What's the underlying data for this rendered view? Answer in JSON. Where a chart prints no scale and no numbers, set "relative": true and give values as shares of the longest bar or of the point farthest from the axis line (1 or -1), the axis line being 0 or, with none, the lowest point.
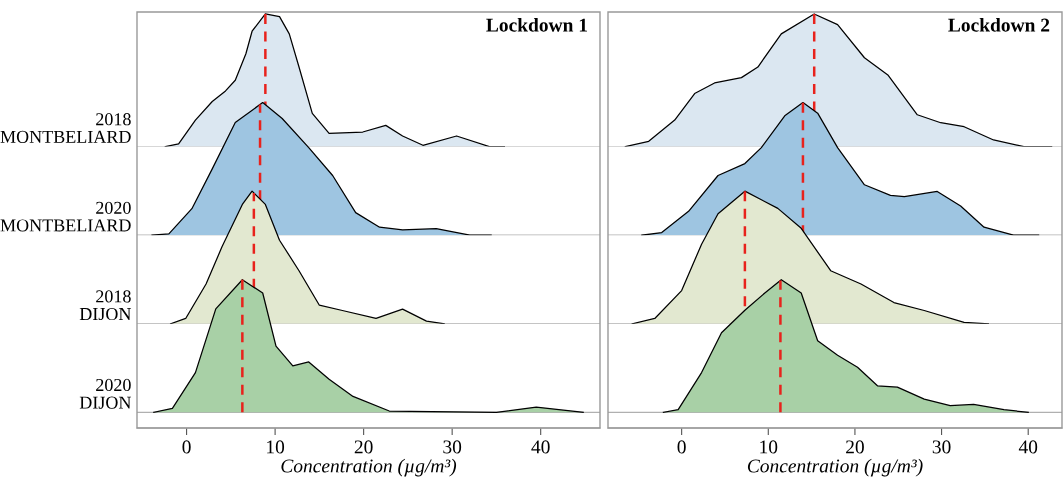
{
  "chart_data": [
    {
      "type": "area",
      "title": "Lockdown 1",
      "relative": true,
      "xlim": [
        -5.6,
        46.7
      ],
      "xticks": [
        0,
        10,
        20,
        30,
        40
      ],
      "tick_labels": false,
      "series": [
        {
          "name": "2018\nMONTBELIARD",
          "color": "#dbe7f1",
          "x": [
            -2.4,
            -0.9,
            1.0,
            2.9,
            4.4,
            5.5,
            6.7,
            7.4,
            8.9,
            10.5,
            11.6,
            12.7,
            14.2,
            16.1,
            19.9,
            22.5,
            24.4,
            26.7,
            30.5,
            34.2,
            35.9
          ],
          "values": [
            0,
            0.02,
            0.2,
            0.34,
            0.42,
            0.5,
            0.7,
            0.87,
            1.0,
            0.98,
            0.85,
            0.6,
            0.25,
            0.1,
            0.11,
            0.16,
            0.08,
            0.01,
            0.08,
            0.0,
            0
          ]
        }
      ],
      "ref_lines": [
        {
          "axis": "x",
          "value": 8.9,
          "color": "#e8221c",
          "line_style": "dashed"
        }
      ]
    },
    {
      "type": "area",
      "relative": true,
      "xlim": [
        -5.6,
        46.7
      ],
      "xticks": [
        0,
        10,
        20,
        30,
        40
      ],
      "tick_labels": false,
      "series": [
        {
          "name": "2020\nMONTBELIARD",
          "color": "#9ec5e1",
          "x": [
            -3.9,
            -2.0,
            0.6,
            2.9,
            5.5,
            8.6,
            10.8,
            13.8,
            16.5,
            19.1,
            21.8,
            24.4,
            28.2,
            32.0,
            34.4
          ],
          "values": [
            0,
            0.01,
            0.2,
            0.5,
            0.85,
            1.0,
            0.88,
            0.66,
            0.45,
            0.17,
            0.06,
            0.04,
            0.05,
            0.0,
            0
          ]
        }
      ],
      "ref_lines": [
        {
          "axis": "x",
          "value": 8.3,
          "color": "#e8221c",
          "line_style": "dashed"
        }
      ]
    },
    {
      "type": "area",
      "relative": true,
      "xlim": [
        -5.6,
        46.7
      ],
      "xticks": [
        0,
        10,
        20,
        30,
        40
      ],
      "tick_labels": false,
      "series": [
        {
          "name": "2018\nDIJON",
          "color": "#e2e8d0",
          "x": [
            -1.8,
            -0.1,
            2.2,
            4.0,
            6.3,
            7.4,
            8.9,
            10.5,
            12.7,
            15.0,
            17.6,
            21.4,
            24.4,
            27.1,
            29.1
          ],
          "values": [
            0,
            0.04,
            0.3,
            0.58,
            0.9,
            1.0,
            0.9,
            0.63,
            0.4,
            0.14,
            0.1,
            0.04,
            0.11,
            0.02,
            0
          ]
        }
      ],
      "ref_lines": [
        {
          "axis": "x",
          "value": 7.6,
          "color": "#e8221c",
          "line_style": "dashed"
        }
      ]
    },
    {
      "type": "area",
      "xlabel": "Concentration (µg/m³)",
      "relative": true,
      "xlim": [
        -5.6,
        46.7
      ],
      "xticks": [
        0,
        10,
        20,
        30,
        40
      ],
      "tick_labels": "x",
      "series": [
        {
          "name": "2020\nDIJON",
          "color": "#a8d0a6",
          "x": [
            -3.7,
            -1.6,
            1.0,
            3.3,
            6.3,
            8.6,
            10.1,
            12.0,
            13.8,
            16.1,
            18.8,
            22.9,
            35.0,
            39.5,
            44.8
          ],
          "values": [
            0,
            0.03,
            0.3,
            0.78,
            1.0,
            0.9,
            0.5,
            0.35,
            0.38,
            0.25,
            0.12,
            0.01,
            0.0,
            0.04,
            0
          ]
        }
      ],
      "ref_lines": [
        {
          "axis": "x",
          "value": 6.3,
          "color": "#e8221c",
          "line_style": "dashed"
        }
      ]
    },
    {
      "type": "area",
      "title": "Lockdown 2",
      "relative": true,
      "xlim": [
        -8.5,
        43.9
      ],
      "xticks": [
        0,
        10,
        20,
        30,
        40
      ],
      "tick_labels": false,
      "series": [
        {
          "color": "#dbe7f1",
          "x": [
            -6.5,
            -3.8,
            -0.8,
            1.5,
            3.8,
            6.9,
            8.8,
            11.5,
            15.3,
            18.0,
            21.1,
            23.8,
            27.2,
            29.9,
            32.6,
            36.0,
            39.5,
            42.7
          ],
          "values": [
            0,
            0.04,
            0.2,
            0.4,
            0.48,
            0.52,
            0.6,
            0.85,
            1.0,
            0.92,
            0.67,
            0.54,
            0.24,
            0.18,
            0.15,
            0.05,
            0.0,
            0
          ]
        }
      ],
      "ref_lines": [
        {
          "axis": "x",
          "value": 15.3,
          "color": "#e8221c",
          "line_style": "dashed"
        }
      ]
    },
    {
      "type": "area",
      "relative": true,
      "xlim": [
        -8.5,
        43.9
      ],
      "xticks": [
        0,
        10,
        20,
        30,
        40
      ],
      "tick_labels": false,
      "series": [
        {
          "color": "#9ec5e1",
          "x": [
            -4.6,
            -2.3,
            0.8,
            4.2,
            7.3,
            9.2,
            11.9,
            14.0,
            15.7,
            18.0,
            21.1,
            24.1,
            25.7,
            29.5,
            32.2,
            34.9,
            38.3,
            41.2
          ],
          "values": [
            0,
            0.02,
            0.18,
            0.45,
            0.54,
            0.66,
            0.9,
            1.0,
            0.92,
            0.66,
            0.38,
            0.3,
            0.29,
            0.33,
            0.22,
            0.06,
            0.0,
            0
          ]
        }
      ],
      "ref_lines": [
        {
          "axis": "x",
          "value": 14.0,
          "color": "#e8221c",
          "line_style": "dashed"
        }
      ]
    },
    {
      "type": "area",
      "relative": true,
      "xlim": [
        -8.5,
        43.9
      ],
      "xticks": [
        0,
        10,
        20,
        30,
        40
      ],
      "tick_labels": false,
      "series": [
        {
          "color": "#e2e8d0",
          "x": [
            -5.7,
            -3.1,
            0,
            2.3,
            4.2,
            7.3,
            11.1,
            13.8,
            17.2,
            20.7,
            24.5,
            28.0,
            32.6,
            35.4
          ],
          "values": [
            0,
            0.04,
            0.25,
            0.6,
            0.83,
            1.0,
            0.87,
            0.72,
            0.4,
            0.3,
            0.16,
            0.1,
            0.01,
            0
          ]
        }
      ],
      "ref_lines": [
        {
          "axis": "x",
          "value": 7.3,
          "color": "#e8221c",
          "line_style": "dashed"
        }
      ]
    },
    {
      "type": "area",
      "xlabel": "Concentration (µg/m³)",
      "relative": true,
      "xlim": [
        -8.5,
        43.9
      ],
      "xticks": [
        0,
        10,
        20,
        30,
        40
      ],
      "tick_labels": "x",
      "series": [
        {
          "color": "#a8d0a6",
          "x": [
            -2.1,
            -0.4,
            2.3,
            4.6,
            7.3,
            9.6,
            11.5,
            13.8,
            15.7,
            18.0,
            20.3,
            22.6,
            24.9,
            28.0,
            31.0,
            33.7,
            37.2,
            40.0
          ],
          "values": [
            0,
            0.02,
            0.3,
            0.6,
            0.77,
            0.9,
            1.0,
            0.9,
            0.54,
            0.43,
            0.34,
            0.2,
            0.19,
            0.1,
            0.05,
            0.06,
            0.02,
            0
          ]
        }
      ],
      "ref_lines": [
        {
          "axis": "x",
          "value": 11.4,
          "color": "#e8221c",
          "line_style": "dashed"
        }
      ]
    }
  ]
}
